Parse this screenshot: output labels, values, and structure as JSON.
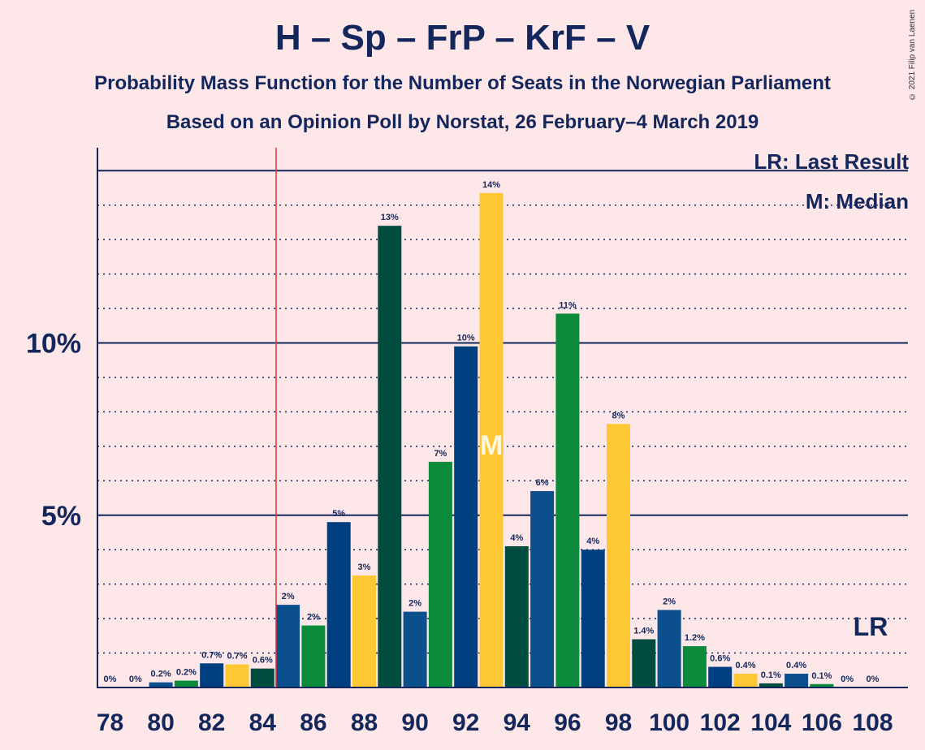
{
  "title": "H – Sp – FrP – KrF – V",
  "subtitle": "Probability Mass Function for the Number of Seats in the Norwegian Parliament",
  "subtitle2": "Based on an Opinion Poll by Norstat, 26 February–4 March 2019",
  "copyright": "© 2021 Filip van Laenen",
  "legend": {
    "last_result": "LR: Last Result",
    "median": "M: Median"
  },
  "markers": {
    "median_letter": "M",
    "last_result_letter": "LR"
  },
  "colors": {
    "background": "#fde7e8",
    "axis": "#13275c",
    "last_result_line": "#e63030",
    "bar_palette": [
      "#0b4f8c",
      "#0a8a3a",
      "#003f7f",
      "#fec734",
      "#004d40"
    ]
  },
  "chart_data": {
    "type": "bar",
    "xlabel": "",
    "ylabel": "",
    "ylim": [
      0,
      15
    ],
    "y_ticks": [
      {
        "value": 5,
        "label": "5%"
      },
      {
        "value": 10,
        "label": "10%"
      }
    ],
    "x_tick_labels": [
      "78",
      "80",
      "82",
      "84",
      "86",
      "88",
      "90",
      "92",
      "94",
      "96",
      "98",
      "100",
      "102",
      "104",
      "106",
      "108"
    ],
    "x_ticks": [
      78,
      80,
      82,
      84,
      86,
      88,
      90,
      92,
      94,
      96,
      98,
      100,
      102,
      104,
      106,
      108
    ],
    "last_result": 85,
    "median": 93,
    "bars": [
      {
        "seats": 78,
        "value": 0,
        "label": "0%",
        "color": "#0b4f8c"
      },
      {
        "seats": 79,
        "value": 0,
        "label": "0%",
        "color": "#0a8a3a"
      },
      {
        "seats": 80,
        "value": 0.15,
        "label": "0.2%",
        "color": "#0b4f8c"
      },
      {
        "seats": 81,
        "value": 0.2,
        "label": "0.2%",
        "color": "#0a8a3a"
      },
      {
        "seats": 82,
        "value": 0.7,
        "label": "0.7%",
        "color": "#003f7f"
      },
      {
        "seats": 83,
        "value": 0.67,
        "label": "0.7%",
        "color": "#fec734"
      },
      {
        "seats": 84,
        "value": 0.55,
        "label": "0.6%",
        "color": "#004d40"
      },
      {
        "seats": 85,
        "value": 2.4,
        "label": "2%",
        "color": "#0b4f8c"
      },
      {
        "seats": 86,
        "value": 1.8,
        "label": "2%",
        "color": "#0a8a3a"
      },
      {
        "seats": 87,
        "value": 4.8,
        "label": "5%",
        "color": "#003f7f"
      },
      {
        "seats": 88,
        "value": 3.25,
        "label": "3%",
        "color": "#fec734"
      },
      {
        "seats": 89,
        "value": 13.4,
        "label": "13%",
        "color": "#004d40"
      },
      {
        "seats": 90,
        "value": 2.2,
        "label": "2%",
        "color": "#0b4f8c"
      },
      {
        "seats": 91,
        "value": 6.55,
        "label": "7%",
        "color": "#0a8a3a"
      },
      {
        "seats": 92,
        "value": 9.9,
        "label": "10%",
        "color": "#003f7f"
      },
      {
        "seats": 93,
        "value": 14.35,
        "label": "14%",
        "color": "#fec734"
      },
      {
        "seats": 94,
        "value": 4.1,
        "label": "4%",
        "color": "#004d40"
      },
      {
        "seats": 95,
        "value": 5.7,
        "label": "6%",
        "color": "#0b4f8c"
      },
      {
        "seats": 96,
        "value": 10.85,
        "label": "11%",
        "color": "#0a8a3a"
      },
      {
        "seats": 97,
        "value": 4.0,
        "label": "4%",
        "color": "#003f7f"
      },
      {
        "seats": 98,
        "value": 7.65,
        "label": "8%",
        "color": "#fec734"
      },
      {
        "seats": 99,
        "value": 1.4,
        "label": "1.4%",
        "color": "#004d40"
      },
      {
        "seats": 100,
        "value": 2.25,
        "label": "2%",
        "color": "#0b4f8c"
      },
      {
        "seats": 101,
        "value": 1.2,
        "label": "1.2%",
        "color": "#0a8a3a"
      },
      {
        "seats": 102,
        "value": 0.6,
        "label": "0.6%",
        "color": "#003f7f"
      },
      {
        "seats": 103,
        "value": 0.4,
        "label": "0.4%",
        "color": "#fec734"
      },
      {
        "seats": 104,
        "value": 0.12,
        "label": "0.1%",
        "color": "#004d40"
      },
      {
        "seats": 105,
        "value": 0.4,
        "label": "0.4%",
        "color": "#0b4f8c"
      },
      {
        "seats": 106,
        "value": 0.1,
        "label": "0.1%",
        "color": "#0a8a3a"
      },
      {
        "seats": 107,
        "value": 0,
        "label": "0%",
        "color": "#003f7f"
      },
      {
        "seats": 108,
        "value": 0,
        "label": "0%",
        "color": "#fec734"
      }
    ]
  }
}
